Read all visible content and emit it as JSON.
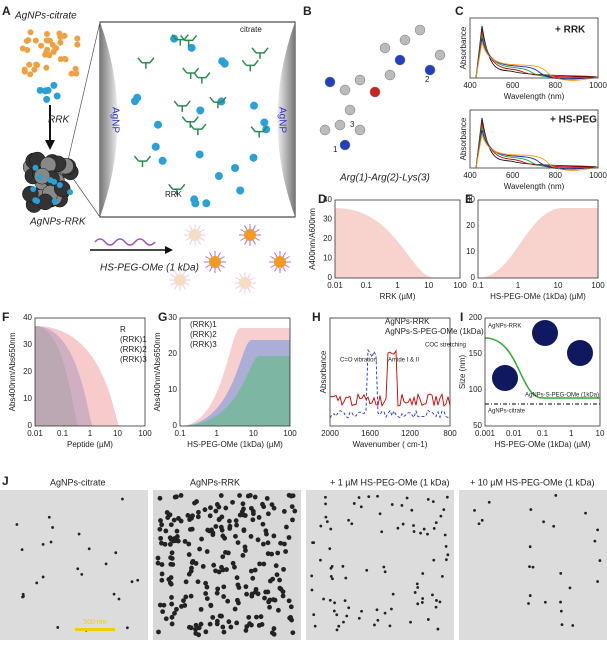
{
  "texts": [
    "A",
    "B",
    "C",
    "D",
    "E",
    "F",
    "G",
    "H",
    "I",
    "J",
    "AgNPs-citrate",
    "RRK",
    "AgNPs-RRK",
    "HS-PEG-OMe (1 kDa)",
    "citrate",
    "RRK",
    "AgNP",
    "AgNP",
    "1",
    "2",
    "3",
    "Arg(1)-Arg(2)-Lys(3)",
    "+ RRK",
    "+ HS-PEG",
    "R",
    "(RRK)1",
    "(RRK)2",
    "(RRK)3",
    "(RRK)1",
    "(RRK)2",
    "(RRK)3",
    "AgNPs-RRK",
    "AgNPs-S-PEG-OMe (1kDa)",
    "C=O vibration",
    "Amide I & II",
    "COC stretching",
    "AgNPs-RRK",
    "AgNPs-citrate",
    "AgNPs-S-PEG-OMe (1kDa)",
    "AgNPs-citrate",
    "AgNPs-RRK",
    "+ 1 µM HS-PEG-OMe (1 kDa)",
    "+ 10 µM HS-PEG-OMe (1 kDa)",
    "500 nm"
  ],
  "axes": [
    {
      "xlabel": "Wavelength (nm)",
      "ylabel": "Absorbance",
      "xticks": [
        "400",
        "600",
        "800",
        "1000"
      ]
    },
    {
      "xlabel": "Wavelength (nm)",
      "ylabel": "Absorbance",
      "xticks": [
        "400",
        "600",
        "800",
        "1000"
      ]
    },
    {
      "xlabel": "RRK (µM)",
      "ylabel": "A400nm/A600nm",
      "xticks": [
        "0.01",
        "0.1",
        "1",
        "10",
        "100"
      ],
      "yticks": [
        "0",
        "10",
        "20",
        "30",
        "40"
      ]
    },
    {
      "xlabel": "HS-PEG-OMe (1kDa) (µM)",
      "xticks": [
        "0.1",
        "1",
        "10",
        "100"
      ],
      "yticks": [
        "0",
        "10",
        "20",
        "30"
      ]
    },
    {
      "xlabel": "Peptide (µM)",
      "ylabel": "Abs400nm/Abs650nm",
      "xticks": [
        "0.01",
        "0.1",
        "1",
        "10",
        "100"
      ],
      "yticks": [
        "0",
        "10",
        "20",
        "30",
        "40"
      ]
    },
    {
      "xlabel": "HS-PEG-OMe (1kDa) (µM)",
      "ylabel": "Abs400nm/Abs650nm",
      "xticks": [
        "0.1",
        "1",
        "10",
        "100"
      ],
      "yticks": [
        "0",
        "10",
        "20",
        "30"
      ]
    },
    {
      "xlabel": "Wavenumber ( cm-1)",
      "ylabel": "Absorbance",
      "xticks": [
        "2000",
        "1600",
        "1200",
        "800"
      ]
    },
    {
      "xlabel": "HS-PEG-OMe (1kDa) (µM)",
      "ylabel": "Size (nm)",
      "xticks": [
        "0.001",
        "0.01",
        "0.1",
        "1",
        "10"
      ],
      "yticks": [
        "50",
        "100",
        "150",
        "200"
      ]
    }
  ]
}
